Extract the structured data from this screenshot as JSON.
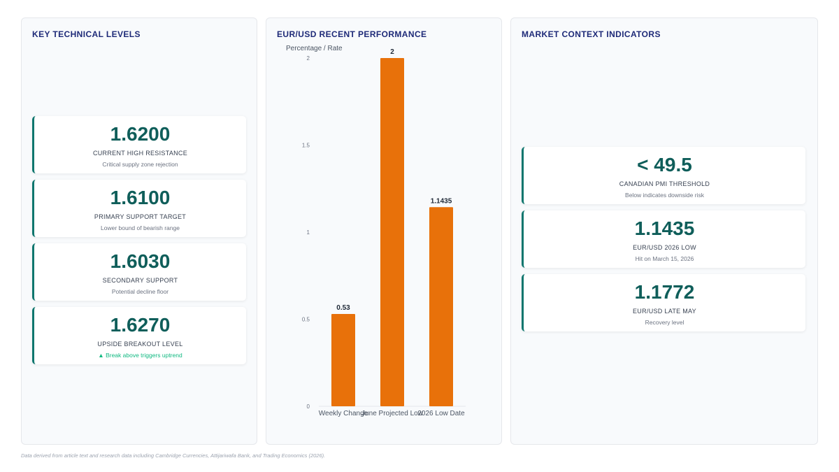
{
  "left_panel": {
    "title": "KEY TECHNICAL LEVELS",
    "cards": [
      {
        "value": "1.6200",
        "label": "CURRENT HIGH RESISTANCE",
        "sub": "Critical supply zone rejection"
      },
      {
        "value": "1.6100",
        "label": "PRIMARY SUPPORT TARGET",
        "sub": "Lower bound of bearish range"
      },
      {
        "value": "1.6030",
        "label": "SECONDARY SUPPORT",
        "sub": "Potential decline floor"
      },
      {
        "value": "1.6270",
        "label": "UPSIDE BREAKOUT LEVEL",
        "sub": "▲ Break above triggers uptrend"
      }
    ]
  },
  "middle_panel": {
    "title": "EUR/USD RECENT PERFORMANCE"
  },
  "right_panel": {
    "title": "MARKET CONTEXT INDICATORS",
    "cards": [
      {
        "value": "< 49.5",
        "label": "CANADIAN PMI THRESHOLD",
        "sub": "Below indicates downside risk"
      },
      {
        "value": "1.1435",
        "label": "EUR/USD 2026 LOW",
        "sub": "Hit on March 15, 2026"
      },
      {
        "value": "1.1772",
        "label": "EUR/USD LATE MAY",
        "sub": "Recovery level"
      }
    ]
  },
  "chart_data": {
    "type": "bar",
    "title": "",
    "ylabel": "Percentage / Rate",
    "xlabel": "",
    "categories": [
      "Weekly Change",
      "June Projected Low",
      "2026 Low Date"
    ],
    "values": [
      0.53,
      2,
      1.1435
    ],
    "value_labels": [
      "0.53",
      "2",
      "1.1435"
    ],
    "ylim": [
      0,
      2
    ],
    "yticks": [
      "0",
      "0.5",
      "1",
      "1.5",
      "2"
    ],
    "grid": false,
    "bar_color": "#e8710a"
  },
  "footnote": "Data derived from article text and research data including Cambridge Currencies, Attijariwafa Bank, and Trading Economics (2026)."
}
